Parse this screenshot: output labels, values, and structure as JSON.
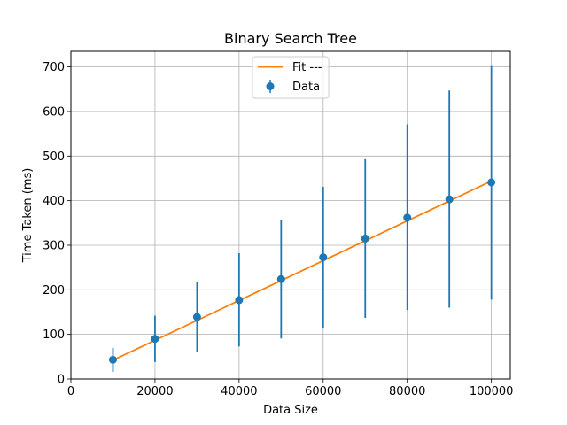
{
  "chart_data": {
    "type": "scatter",
    "title": "Binary Search Tree",
    "xlabel": "Data Size",
    "ylabel": "Time Taken (ms)",
    "xlim": [
      0,
      104500
    ],
    "ylim": [
      0,
      735
    ],
    "xticks": [
      0,
      20000,
      40000,
      60000,
      80000,
      100000
    ],
    "yticks": [
      0,
      100,
      200,
      300,
      400,
      500,
      600,
      700
    ],
    "grid": true,
    "legend_position": "top-center",
    "series": [
      {
        "name": "Data",
        "kind": "errorbar",
        "color": "#1f77b4",
        "x": [
          10000,
          20000,
          30000,
          40000,
          50000,
          60000,
          70000,
          80000,
          90000,
          100000
        ],
        "y": [
          43,
          90,
          139,
          177,
          224,
          273,
          315,
          362,
          403,
          441
        ],
        "err_low": [
          27,
          52,
          78,
          104,
          133,
          158,
          178,
          207,
          243,
          263
        ],
        "err_high": [
          27,
          52,
          78,
          105,
          132,
          158,
          178,
          209,
          244,
          263
        ]
      },
      {
        "name": "Fit ---",
        "kind": "line",
        "color": "#ff7f0e",
        "x": [
          10000,
          100000
        ],
        "y": [
          42,
          444
        ]
      }
    ]
  }
}
